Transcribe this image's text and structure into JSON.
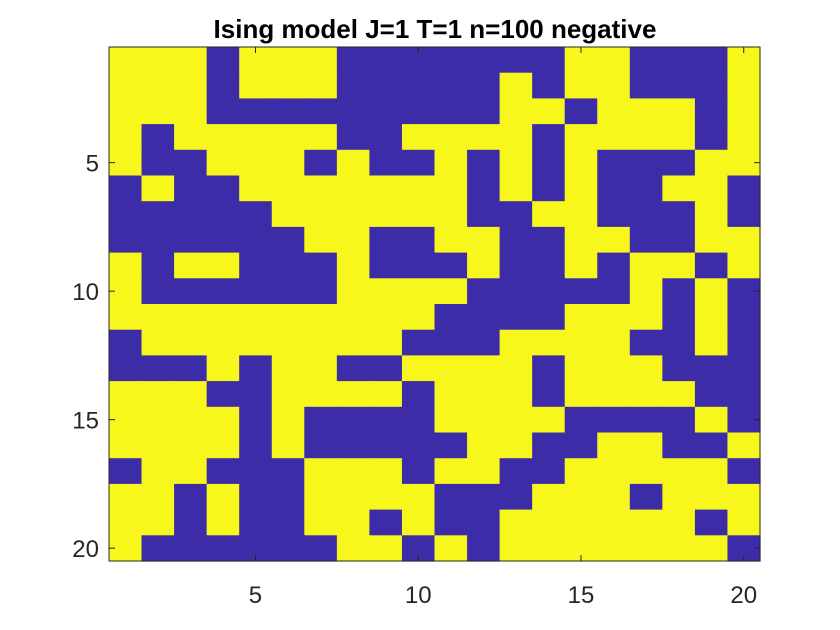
{
  "chart_data": {
    "type": "heatmap",
    "title": "Ising model J=1 T=1 n=100 negative",
    "xlabel": "",
    "ylabel": "",
    "rows": 20,
    "cols": 20,
    "x_ticks": [
      "5",
      "10",
      "15",
      "20"
    ],
    "y_ticks": [
      "5",
      "10",
      "15",
      "20"
    ],
    "x_tick_values": [
      5,
      10,
      15,
      20
    ],
    "y_tick_values": [
      5,
      10,
      15,
      20
    ],
    "xlim": [
      0.5,
      20.5
    ],
    "ylim": [
      0.5,
      20.5
    ],
    "y_direction": "reverse",
    "grid": false,
    "colors": {
      "spin_up": "#f7f71c",
      "spin_down": "#3c2ca8"
    },
    "encoding": {
      "1": "yellow (spin up)",
      "0": "blue (spin down)"
    },
    "values": [
      [
        1,
        1,
        1,
        0,
        1,
        1,
        1,
        0,
        0,
        0,
        0,
        0,
        0,
        0,
        1,
        1,
        0,
        0,
        0,
        1
      ],
      [
        1,
        1,
        1,
        0,
        1,
        1,
        1,
        0,
        0,
        0,
        0,
        0,
        1,
        0,
        1,
        1,
        0,
        0,
        0,
        1
      ],
      [
        1,
        1,
        1,
        0,
        0,
        0,
        0,
        0,
        0,
        0,
        0,
        0,
        1,
        1,
        0,
        1,
        1,
        1,
        0,
        1
      ],
      [
        1,
        0,
        1,
        1,
        1,
        1,
        1,
        0,
        0,
        1,
        1,
        1,
        1,
        0,
        1,
        1,
        1,
        1,
        0,
        1
      ],
      [
        1,
        0,
        0,
        1,
        1,
        1,
        0,
        1,
        0,
        0,
        1,
        0,
        1,
        0,
        1,
        0,
        0,
        0,
        1,
        1
      ],
      [
        0,
        1,
        0,
        0,
        1,
        1,
        1,
        1,
        1,
        1,
        1,
        0,
        1,
        0,
        1,
        0,
        0,
        1,
        1,
        0
      ],
      [
        0,
        0,
        0,
        0,
        0,
        1,
        1,
        1,
        1,
        1,
        1,
        0,
        0,
        1,
        1,
        0,
        0,
        0,
        1,
        0
      ],
      [
        0,
        0,
        0,
        0,
        0,
        0,
        1,
        1,
        0,
        0,
        1,
        1,
        0,
        0,
        1,
        1,
        0,
        0,
        1,
        1
      ],
      [
        1,
        0,
        1,
        1,
        0,
        0,
        0,
        1,
        0,
        0,
        0,
        1,
        0,
        0,
        1,
        0,
        1,
        1,
        0,
        1
      ],
      [
        1,
        0,
        0,
        0,
        0,
        0,
        0,
        1,
        1,
        1,
        1,
        0,
        0,
        0,
        0,
        0,
        1,
        0,
        1,
        0
      ],
      [
        1,
        1,
        1,
        1,
        1,
        1,
        1,
        1,
        1,
        1,
        0,
        0,
        0,
        0,
        1,
        1,
        1,
        0,
        1,
        0
      ],
      [
        0,
        1,
        1,
        1,
        1,
        1,
        1,
        1,
        1,
        0,
        0,
        0,
        1,
        1,
        1,
        1,
        0,
        0,
        1,
        0
      ],
      [
        0,
        0,
        0,
        1,
        0,
        1,
        1,
        0,
        0,
        1,
        1,
        1,
        1,
        0,
        1,
        1,
        1,
        0,
        0,
        0
      ],
      [
        1,
        1,
        1,
        0,
        0,
        1,
        1,
        1,
        1,
        0,
        1,
        1,
        1,
        0,
        1,
        1,
        1,
        1,
        0,
        0
      ],
      [
        1,
        1,
        1,
        1,
        0,
        1,
        0,
        0,
        0,
        0,
        1,
        1,
        1,
        1,
        0,
        0,
        0,
        0,
        1,
        0
      ],
      [
        1,
        1,
        1,
        1,
        0,
        1,
        0,
        0,
        0,
        0,
        0,
        1,
        1,
        0,
        0,
        1,
        1,
        0,
        0,
        1
      ],
      [
        0,
        1,
        1,
        0,
        0,
        0,
        1,
        1,
        1,
        0,
        1,
        1,
        0,
        0,
        1,
        1,
        1,
        1,
        1,
        0
      ],
      [
        1,
        1,
        0,
        1,
        0,
        0,
        1,
        1,
        1,
        1,
        0,
        0,
        0,
        1,
        1,
        1,
        0,
        1,
        1,
        1
      ],
      [
        1,
        1,
        0,
        1,
        0,
        0,
        1,
        1,
        0,
        1,
        0,
        0,
        1,
        1,
        1,
        1,
        1,
        1,
        0,
        1
      ],
      [
        1,
        0,
        0,
        0,
        0,
        0,
        0,
        1,
        1,
        0,
        1,
        0,
        1,
        1,
        1,
        1,
        1,
        1,
        1,
        0
      ]
    ]
  }
}
